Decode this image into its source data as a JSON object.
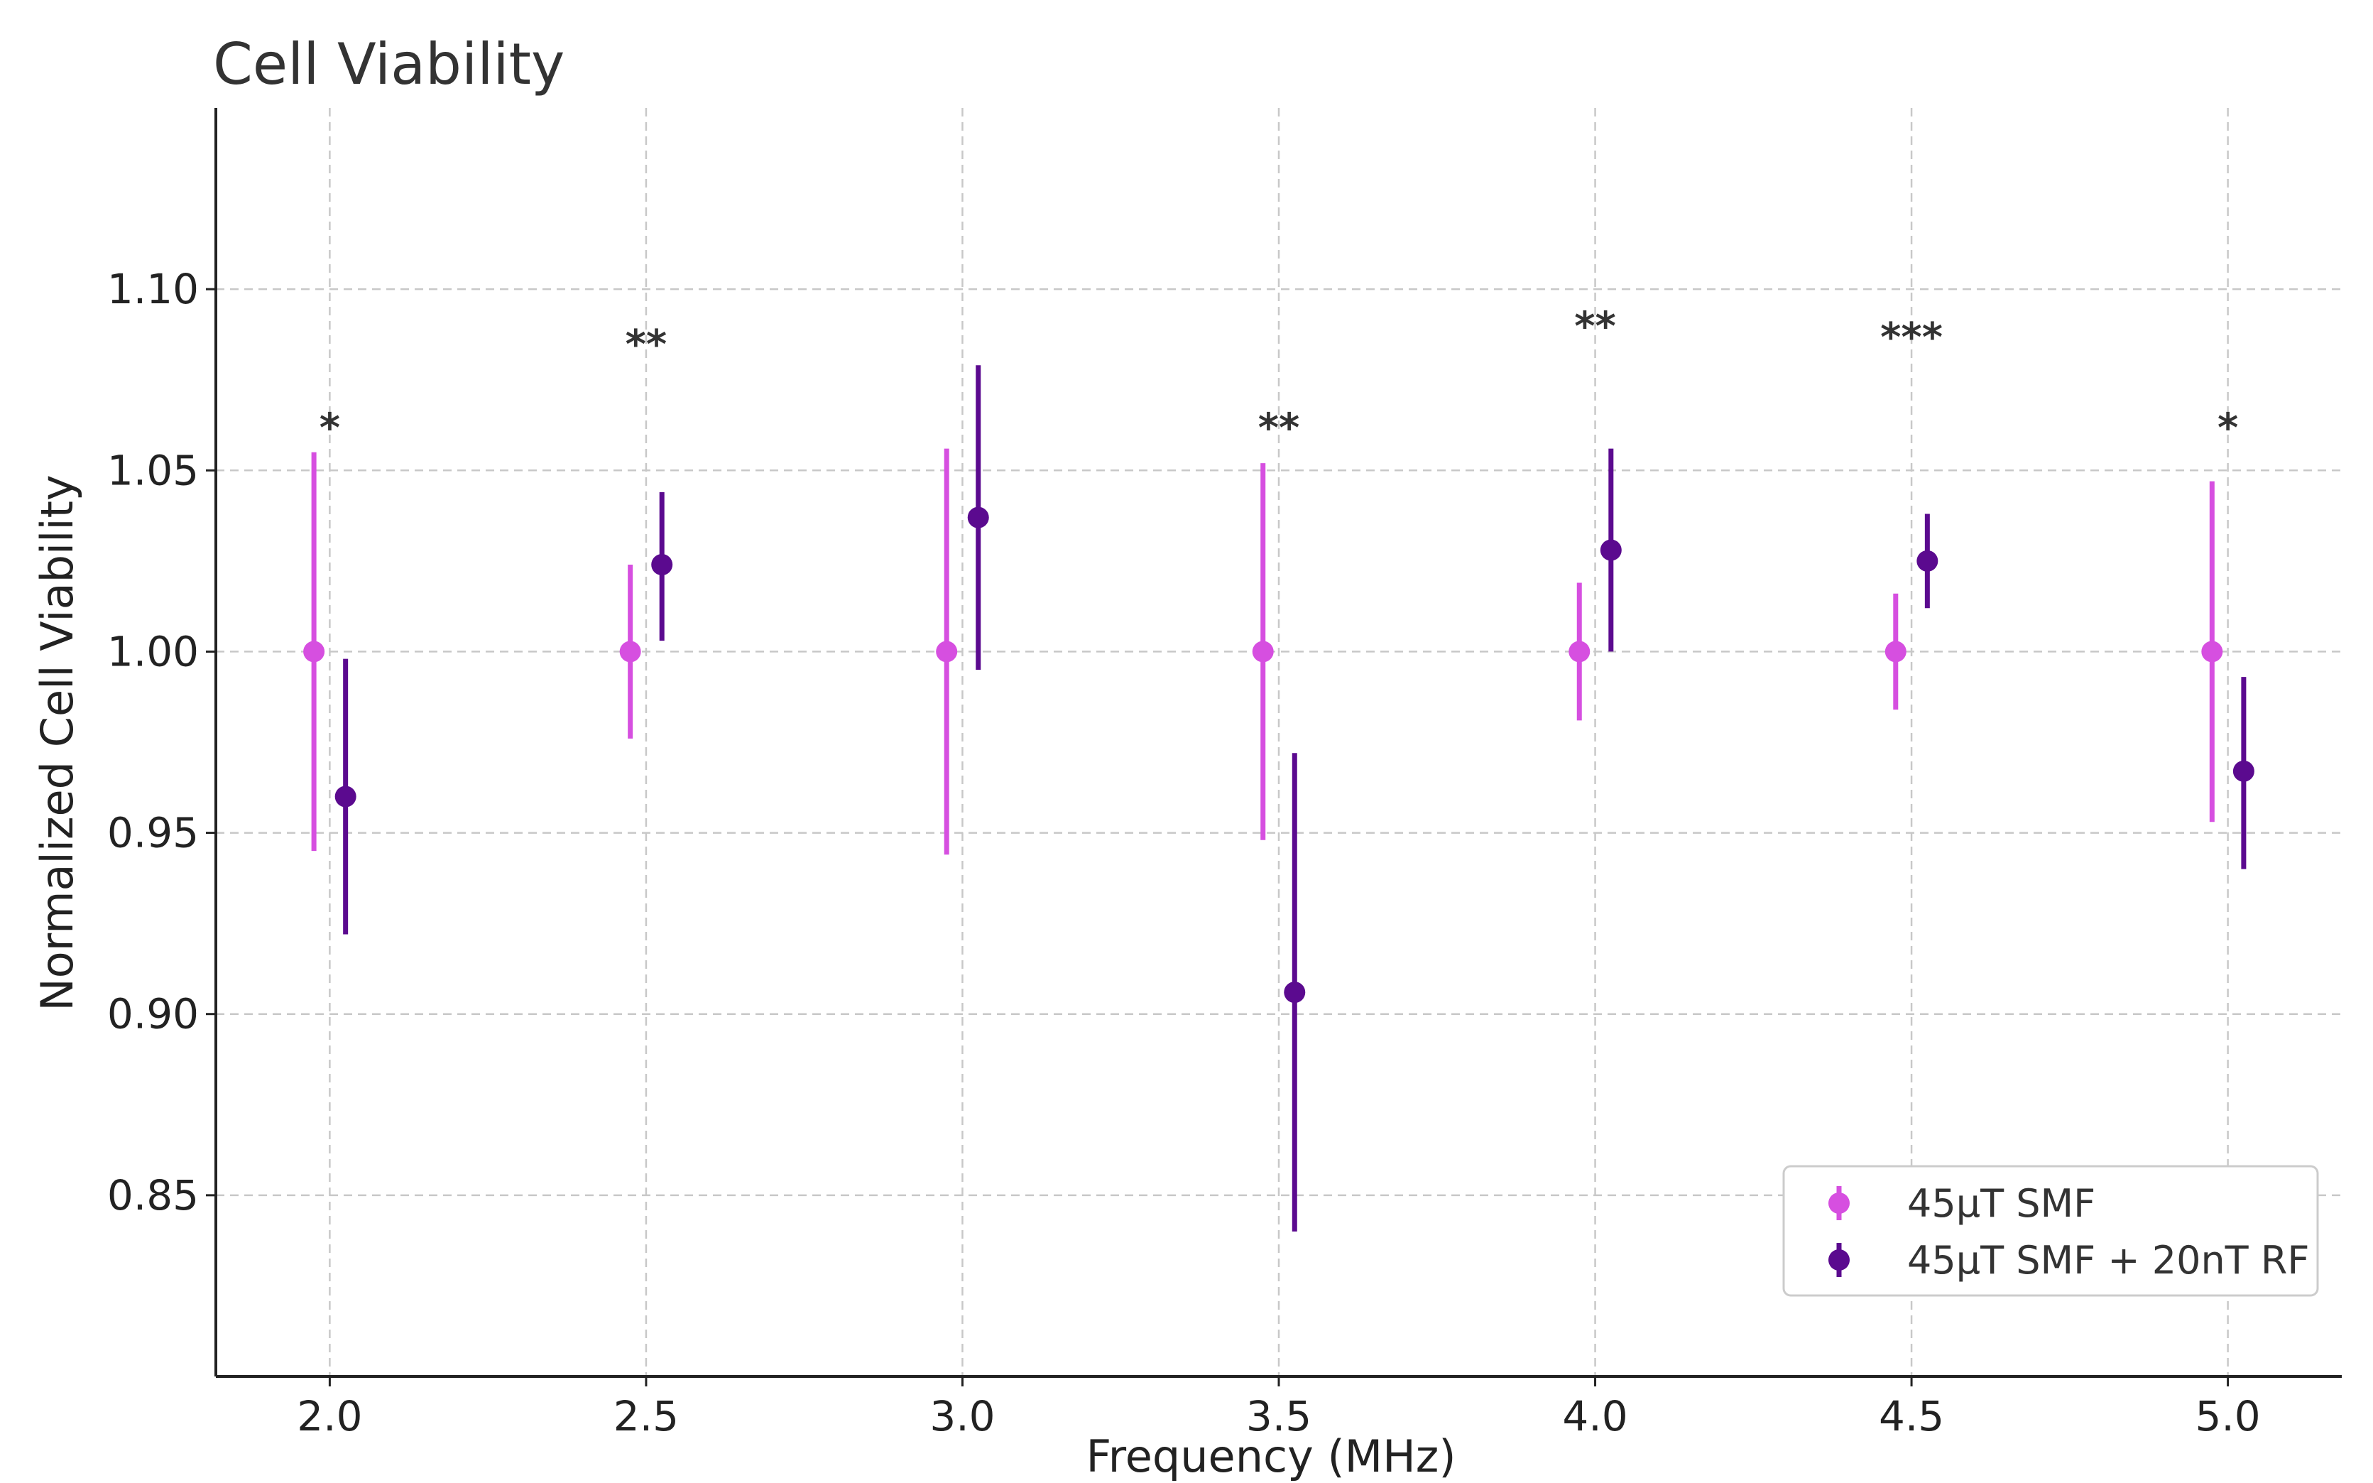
{
  "chart_data": {
    "type": "scatter",
    "title": "Cell Viability",
    "xlabel": "Frequency (MHz)",
    "ylabel": "Normalized Cell Viability",
    "xlim": [
      1.82,
      5.18
    ],
    "ylim": [
      0.8,
      1.15
    ],
    "xticks": [
      2.0,
      2.5,
      3.0,
      3.5,
      4.0,
      4.5,
      5.0
    ],
    "xtick_labels": [
      "2.0",
      "2.5",
      "3.0",
      "3.5",
      "4.0",
      "4.5",
      "5.0"
    ],
    "yticks": [
      0.85,
      0.9,
      0.95,
      1.0,
      1.05,
      1.1
    ],
    "ytick_labels": [
      "0.85",
      "0.90",
      "0.95",
      "1.00",
      "1.05",
      "1.10"
    ],
    "grid": true,
    "legend_position": "bottom-right",
    "x_offset": 0.025,
    "series": [
      {
        "name": "45μT SMF",
        "color": "#d64fe0",
        "x": [
          2.0,
          2.5,
          3.0,
          3.5,
          4.0,
          4.5,
          5.0
        ],
        "values": [
          1.0,
          1.0,
          1.0,
          1.0,
          1.0,
          1.0,
          1.0
        ],
        "err_low": [
          0.945,
          0.976,
          0.944,
          0.948,
          0.981,
          0.984,
          0.953
        ],
        "err_high": [
          1.055,
          1.024,
          1.056,
          1.052,
          1.019,
          1.016,
          1.047
        ]
      },
      {
        "name": "45μT SMF + 20nT RF",
        "color": "#5b0a8f",
        "x": [
          2.0,
          2.5,
          3.0,
          3.5,
          4.0,
          4.5,
          5.0
        ],
        "values": [
          0.96,
          1.024,
          1.037,
          0.906,
          1.028,
          1.025,
          0.967
        ],
        "err_low": [
          0.922,
          1.003,
          0.995,
          0.84,
          1.0,
          1.012,
          0.94
        ],
        "err_high": [
          0.998,
          1.044,
          1.079,
          0.972,
          1.056,
          1.038,
          0.993
        ]
      }
    ],
    "annotations": [
      {
        "x": 2.0,
        "y": 1.058,
        "text": "*"
      },
      {
        "x": 2.5,
        "y": 1.081,
        "text": "**"
      },
      {
        "x": 3.5,
        "y": 1.058,
        "text": "**"
      },
      {
        "x": 4.0,
        "y": 1.086,
        "text": "**"
      },
      {
        "x": 4.5,
        "y": 1.083,
        "text": "***"
      },
      {
        "x": 5.0,
        "y": 1.058,
        "text": "*"
      }
    ]
  }
}
